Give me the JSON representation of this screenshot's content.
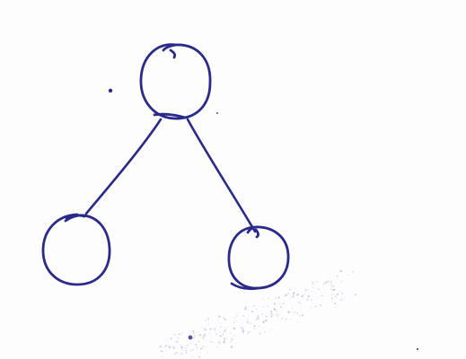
{
  "diagram": {
    "type": "tree",
    "ink_color": "#2a2a8c",
    "paper_color": "#fdfdfd",
    "smudge_color": "#8a8ac8",
    "nodes": [
      {
        "id": "root",
        "label": ""
      },
      {
        "id": "left-child",
        "label": ""
      },
      {
        "id": "right-child",
        "label": ""
      }
    ],
    "edges": [
      {
        "from": "root",
        "to": "left-child"
      },
      {
        "from": "root",
        "to": "right-child"
      }
    ]
  }
}
